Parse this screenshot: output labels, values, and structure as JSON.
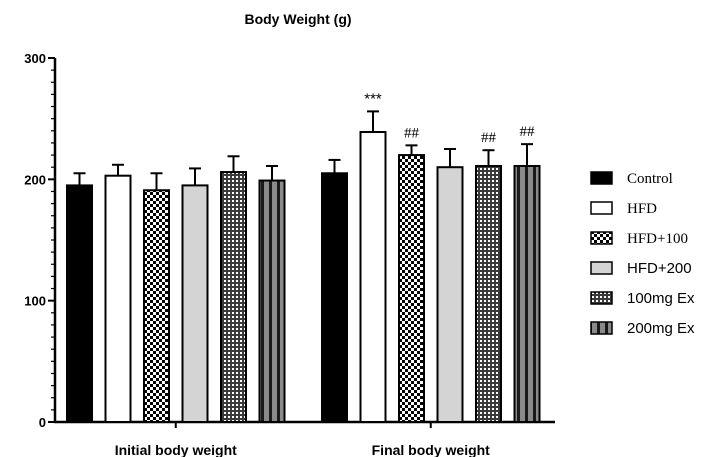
{
  "chart_data": {
    "type": "bar",
    "title": "Body Weight (g)",
    "xlabel": "",
    "ylabel": "",
    "ylim": [
      0,
      300
    ],
    "yticks": [
      0,
      100,
      200,
      300
    ],
    "categories": [
      "Initial body weight",
      "Final body weight"
    ],
    "series": [
      {
        "name": "Control",
        "values": [
          195,
          205
        ],
        "errors": [
          10,
          11
        ],
        "fill": "#000000",
        "pattern": "solid",
        "annotations": [
          "",
          ""
        ]
      },
      {
        "name": "HFD",
        "values": [
          203,
          239
        ],
        "errors": [
          9,
          17
        ],
        "fill": "#ffffff",
        "pattern": "solid",
        "annotations": [
          "",
          "***"
        ]
      },
      {
        "name": "HFD+100",
        "values": [
          191,
          220
        ],
        "errors": [
          14,
          8
        ],
        "fill": "#000000",
        "pattern": "checker",
        "annotations": [
          "",
          "##"
        ]
      },
      {
        "name": "HFD+200",
        "values": [
          195,
          210
        ],
        "errors": [
          14,
          15
        ],
        "fill": "#d4d4d4",
        "pattern": "solid",
        "annotations": [
          "",
          ""
        ]
      },
      {
        "name": "100mg Ex",
        "values": [
          206,
          211
        ],
        "errors": [
          13,
          13
        ],
        "fill": "#555555",
        "pattern": "dots",
        "annotations": [
          "",
          "##"
        ]
      },
      {
        "name": "200mg Ex",
        "values": [
          199,
          211
        ],
        "errors": [
          12,
          18
        ],
        "fill": "#8a8a8a",
        "pattern": "stripes",
        "annotations": [
          "",
          "##"
        ]
      }
    ],
    "legend_position": "right",
    "grid": false
  }
}
